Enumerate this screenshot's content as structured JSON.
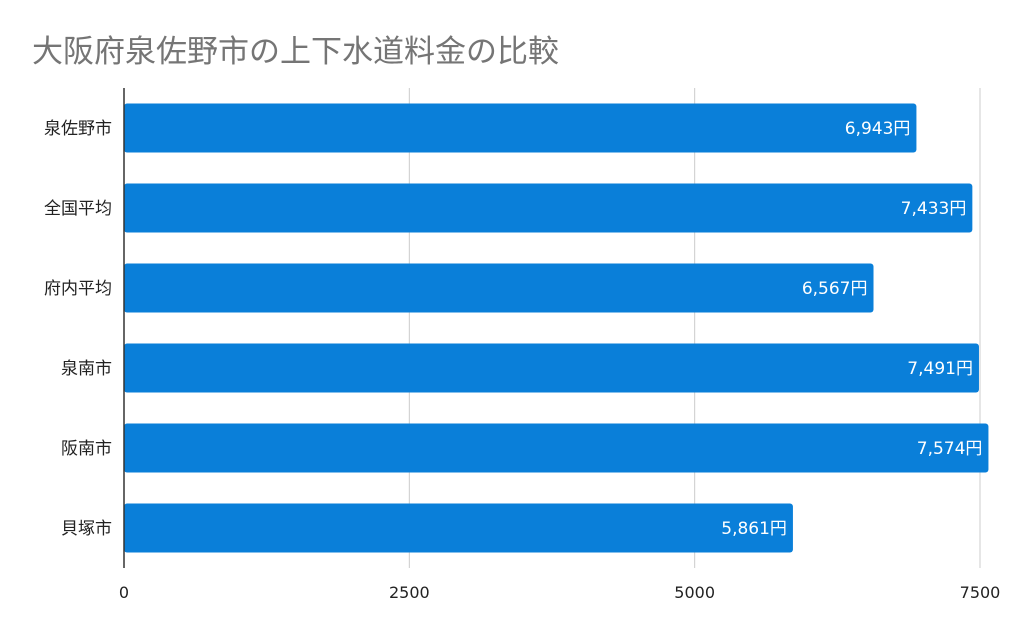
{
  "title": "大阪府泉佐野市の上下水道料金の比較",
  "colors": {
    "bar": "#0a7fd9",
    "grid": "#cccccc",
    "axis": "#333333"
  },
  "chart_data": {
    "type": "bar",
    "orientation": "horizontal",
    "title": "大阪府泉佐野市の上下水道料金の比較",
    "categories": [
      "泉佐野市",
      "全国平均",
      "府内平均",
      "泉南市",
      "阪南市",
      "貝塚市"
    ],
    "values": [
      6943,
      7433,
      6567,
      7491,
      7574,
      5861
    ],
    "data_labels": [
      "6,943円",
      "7,433円",
      "6,567円",
      "7,491円",
      "7,574円",
      "5,861円"
    ],
    "xlim": [
      0,
      7500
    ],
    "x_ticks": [
      0,
      2500,
      5000,
      7500
    ],
    "x_tick_labels": [
      "0",
      "2500",
      "5000",
      "7500"
    ],
    "grid": true,
    "legend": "none"
  }
}
